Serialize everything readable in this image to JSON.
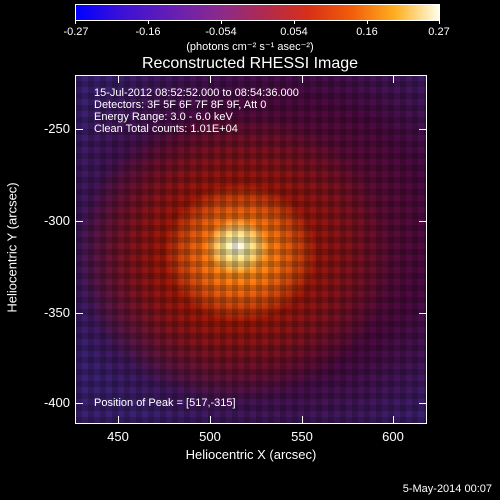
{
  "colorbar": {
    "tick_labels": [
      "-0.27",
      "-0.16",
      "-0.054",
      "0.054",
      "0.16",
      "0.27"
    ],
    "unit_label": "(photons cm⁻² s⁻¹ asec⁻²)"
  },
  "title": "Reconstructed RHESSI Image",
  "info": {
    "time": "15-Jul-2012 08:52:52.000 to 08:54:36.000",
    "detectors": "Detectors: 3F 5F 6F 7F 8F 9F, Att 0",
    "energy": "Energy Range: 3.0 - 6.0 keV",
    "clean": "Clean     Total counts: 1.01E+04",
    "peak": "Position of Peak = [517,-315]"
  },
  "axes": {
    "x_title": "Heliocentric X (arcsec)",
    "y_title": "Heliocentric Y (arcsec)",
    "x_ticks": [
      "450",
      "500",
      "550",
      "600"
    ],
    "y_ticks": [
      "-250",
      "-300",
      "-350",
      "-400"
    ]
  },
  "footer_date": "5-May-2014 00:07"
}
